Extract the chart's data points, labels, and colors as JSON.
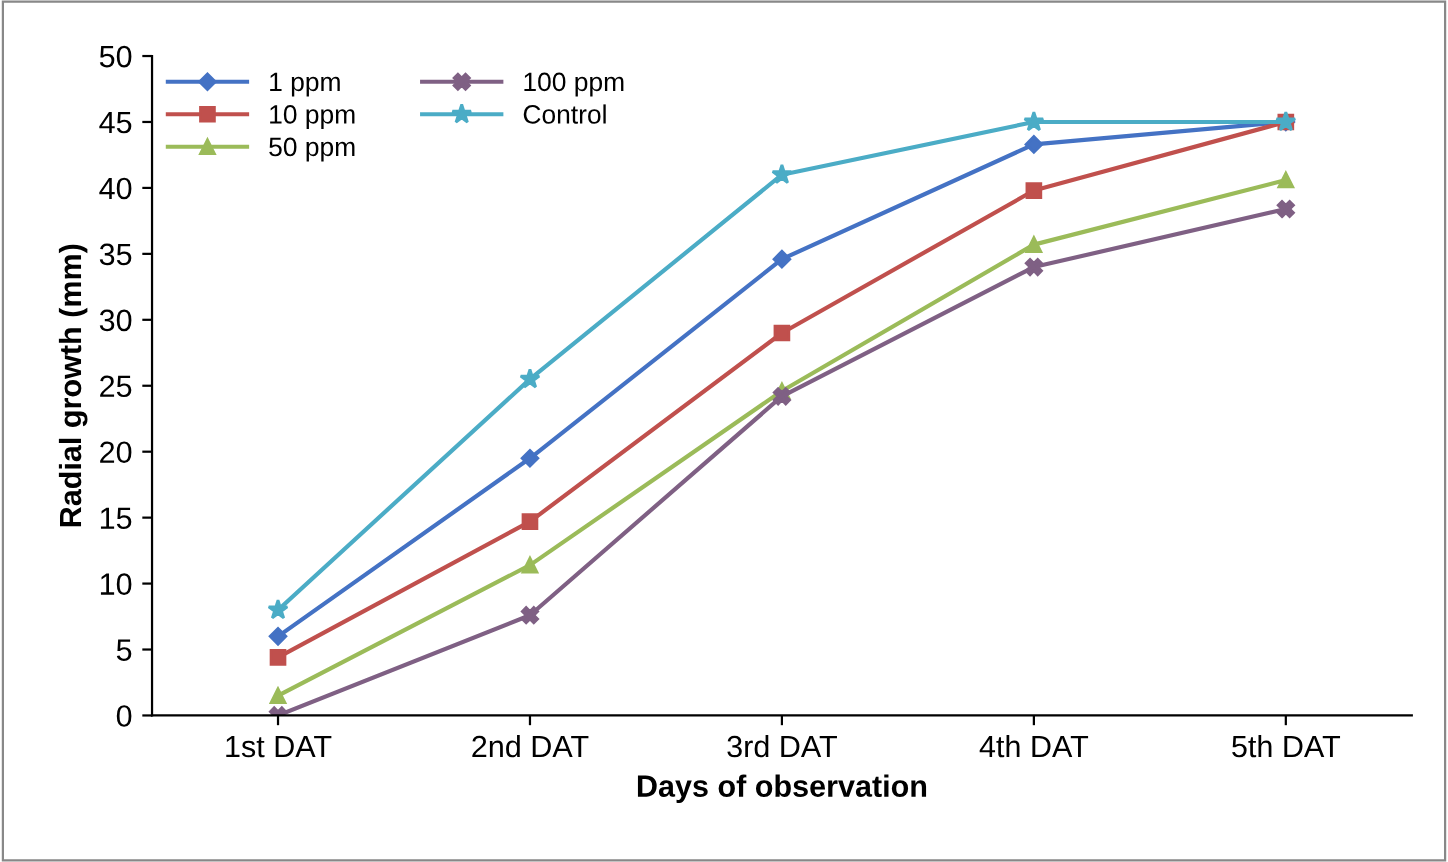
{
  "chart_data": {
    "type": "line",
    "xlabel": "Days of observation",
    "ylabel": "Radial growth (mm)",
    "categories": [
      "1st DAT",
      "2nd DAT",
      "3rd DAT",
      "4th DAT",
      "5th DAT"
    ],
    "series": [
      {
        "name": "1 ppm",
        "color": "#4472c4",
        "marker": "diamond",
        "values": [
          6,
          19.5,
          34.6,
          43.3,
          45
        ]
      },
      {
        "name": "10 ppm",
        "color": "#c0504d",
        "marker": "square",
        "values": [
          4.4,
          14.7,
          29,
          39.8,
          45
        ]
      },
      {
        "name": "50 ppm",
        "color": "#9bbb59",
        "marker": "triangle",
        "values": [
          1.5,
          11.4,
          24.6,
          35.7,
          40.6
        ]
      },
      {
        "name": "100 ppm",
        "color": "#7f6084",
        "marker": "cross",
        "values": [
          0,
          7.6,
          24.2,
          34,
          38.4
        ]
      },
      {
        "name": "Control",
        "color": "#4bacc6",
        "marker": "star",
        "values": [
          8,
          25.5,
          41,
          45,
          45
        ]
      }
    ],
    "ylim": [
      0,
      50
    ],
    "yticks": [
      0,
      5,
      10,
      15,
      20,
      25,
      30,
      35,
      40,
      45,
      50
    ],
    "grid": false,
    "legend": "top left",
    "line_style": "solid"
  }
}
